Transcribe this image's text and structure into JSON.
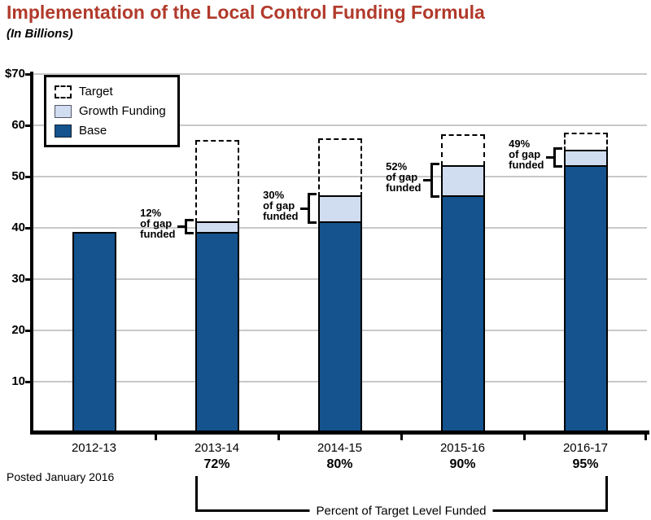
{
  "header": {
    "title": "Implementation of the Local Control Funding Formula",
    "subtitle": "(In Billions)"
  },
  "footer": {
    "posted": "Posted January 2016"
  },
  "colors": {
    "title": "#B13A2B",
    "base_bar": "#14538D",
    "growth_bar": "#D0DCEF",
    "target_outline": "#000000",
    "grid": "#C8C8C8",
    "axis": "#000000"
  },
  "chart_data": {
    "type": "bar",
    "stacked": true,
    "title": "Implementation of the Local Control Funding Formula",
    "subtitle": "(In Billions)",
    "units": "billions of dollars",
    "categories": [
      "2012-13",
      "2013-14",
      "2014-15",
      "2015-16",
      "2016-17"
    ],
    "series": [
      {
        "name": "Base",
        "values": [
          39.2,
          39.2,
          41.3,
          46.3,
          52.3
        ]
      },
      {
        "name": "Growth Funding",
        "values": [
          0,
          2.1,
          5.0,
          6.0,
          3.0
        ]
      }
    ],
    "target_series": {
      "name": "Target",
      "values": [
        null,
        57.1,
        57.5,
        58.2,
        58.6
      ]
    },
    "totals": [
      39.2,
      41.3,
      46.3,
      52.3,
      55.3
    ],
    "ylim": [
      0,
      70
    ],
    "grid": true,
    "legend_position": "top-left",
    "yticks": [
      {
        "value": 10,
        "label": "10"
      },
      {
        "value": 20,
        "label": "20"
      },
      {
        "value": 30,
        "label": "30"
      },
      {
        "value": 40,
        "label": "40"
      },
      {
        "value": 50,
        "label": "50"
      },
      {
        "value": 60,
        "label": "60"
      },
      {
        "value": 70,
        "label": "$70"
      }
    ],
    "legend": {
      "items": [
        {
          "label": "Target",
          "swatch": "target"
        },
        {
          "label": "Growth Funding",
          "swatch": "growth"
        },
        {
          "label": "Base",
          "swatch": "base"
        }
      ]
    },
    "gap_annotations": [
      {
        "category": "2013-14",
        "lines": [
          "12%",
          "of gap",
          "funded"
        ]
      },
      {
        "category": "2014-15",
        "lines": [
          "30%",
          "of gap",
          "funded"
        ]
      },
      {
        "category": "2015-16",
        "lines": [
          "52%",
          "of gap",
          "funded"
        ]
      },
      {
        "category": "2016-17",
        "lines": [
          "49%",
          "of gap",
          "funded"
        ]
      }
    ],
    "percent_labels": [
      "",
      "72%",
      "80%",
      "90%",
      "95%"
    ],
    "bottom_bracket": {
      "label": "Percent of Target Level Funded",
      "from_category": "2013-14",
      "to_category": "2016-17"
    }
  }
}
